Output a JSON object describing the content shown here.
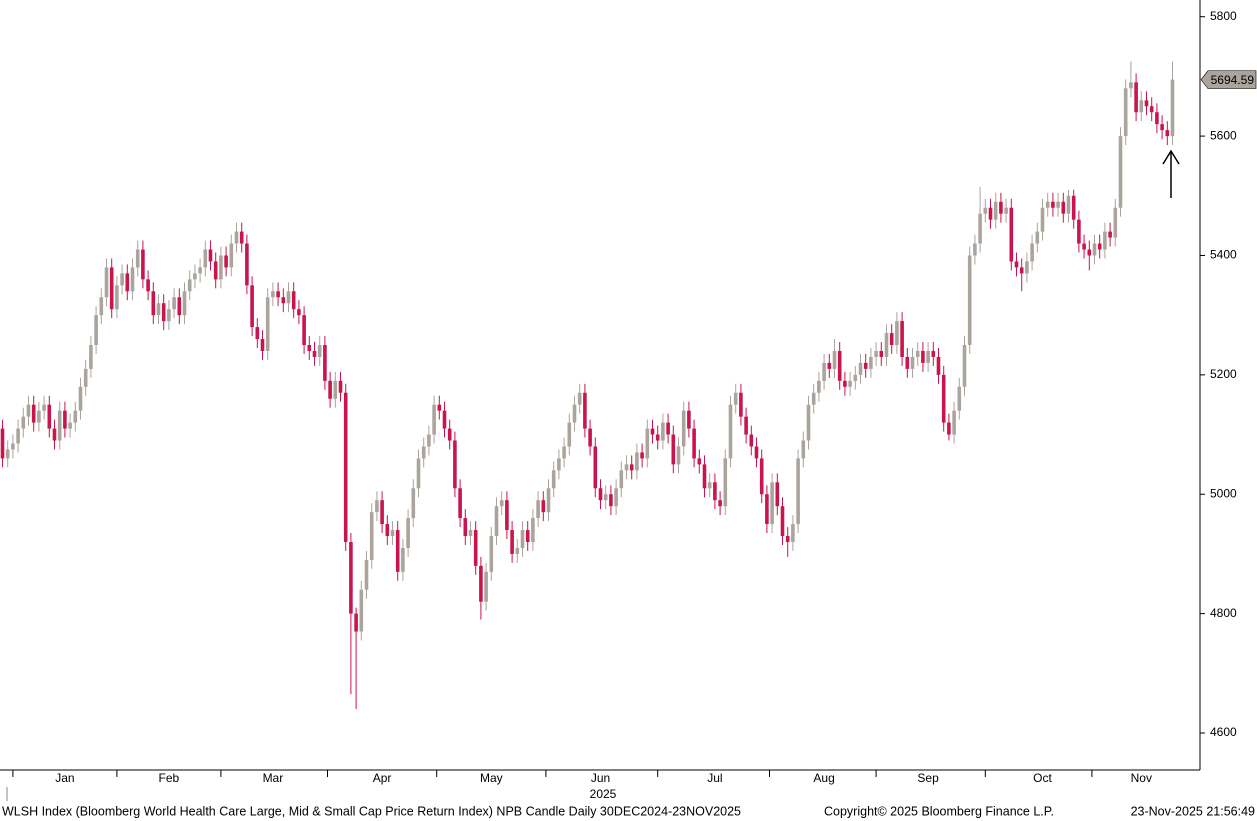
{
  "chart_data": {
    "type": "candlestick",
    "categories": [
      null,
      null,
      null,
      null,
      null,
      null,
      null,
      null,
      null,
      null,
      null,
      null,
      "Jan",
      null,
      null,
      null,
      null,
      null,
      null,
      null,
      null,
      null,
      null,
      null,
      null,
      null,
      null,
      null,
      null,
      null,
      null,
      null,
      "Feb",
      null,
      null,
      null,
      null,
      null,
      null,
      null,
      null,
      null,
      null,
      null,
      null,
      null,
      null,
      null,
      null,
      null,
      null,
      null,
      "Mar",
      null,
      null,
      null,
      null,
      null,
      null,
      null,
      null,
      null,
      null,
      null,
      null,
      null,
      null,
      null,
      null,
      null,
      null,
      null,
      null,
      "Apr",
      null,
      null,
      null,
      null,
      null,
      null,
      null,
      null,
      null,
      null,
      null,
      null,
      null,
      null,
      null,
      null,
      null,
      null,
      null,
      null,
      "May",
      null,
      null,
      null,
      null,
      null,
      null,
      null,
      null,
      null,
      null,
      null,
      null,
      null,
      null,
      null,
      null,
      null,
      null,
      null,
      null,
      "Jun",
      null,
      null,
      null,
      null,
      null,
      null,
      null,
      null,
      null,
      null,
      null,
      null,
      null,
      null,
      null,
      null,
      null,
      null,
      null,
      null,
      null,
      "Jul",
      null,
      null,
      null,
      null,
      null,
      null,
      null,
      null,
      null,
      null,
      null,
      null,
      null,
      null,
      null,
      null,
      null,
      null,
      null,
      null,
      "Aug",
      null,
      null,
      null,
      null,
      null,
      null,
      null,
      null,
      null,
      null,
      null,
      null,
      null,
      null,
      null,
      null,
      null,
      null,
      null,
      "Sep",
      null,
      null,
      null,
      null,
      null,
      null,
      null,
      null,
      null,
      null,
      null,
      null,
      null,
      null,
      null,
      null,
      null,
      null,
      null,
      null,
      null,
      "Oct",
      null,
      null,
      null,
      null,
      null,
      null,
      null,
      null,
      null,
      null,
      null,
      null,
      null,
      null,
      null,
      null,
      null,
      null,
      "Nov",
      null,
      null,
      null,
      null,
      null,
      null
    ],
    "x_year_label": "2025",
    "open": [
      5110,
      5060,
      5075,
      5085,
      5110,
      5130,
      5150,
      5120,
      5140,
      5150,
      5110,
      5090,
      5140,
      5110,
      5120,
      5140,
      5180,
      5210,
      5250,
      5300,
      5330,
      5380,
      5310,
      5350,
      5370,
      5340,
      5380,
      5410,
      5360,
      5340,
      5300,
      5320,
      5290,
      5310,
      5330,
      5300,
      5340,
      5360,
      5370,
      5380,
      5410,
      5390,
      5360,
      5400,
      5380,
      5420,
      5440,
      5420,
      5350,
      5280,
      5260,
      5240,
      5330,
      5340,
      5330,
      5320,
      5340,
      5310,
      5300,
      5250,
      5240,
      5230,
      5250,
      5190,
      5160,
      5190,
      5170,
      4920,
      4800,
      4770,
      4840,
      4890,
      4970,
      4990,
      4950,
      4930,
      4940,
      4870,
      4910,
      4960,
      5010,
      5060,
      5080,
      5100,
      5150,
      5140,
      5110,
      5090,
      5010,
      4960,
      4930,
      4940,
      4880,
      4820,
      4870,
      4930,
      4980,
      4990,
      4940,
      4900,
      4910,
      4940,
      4920,
      4960,
      4990,
      4970,
      5010,
      5040,
      5060,
      5080,
      5120,
      5150,
      5170,
      5110,
      5080,
      5010,
      4990,
      5000,
      4980,
      5010,
      5040,
      5050,
      5040,
      5070,
      5060,
      5110,
      5100,
      5090,
      5120,
      5100,
      5050,
      5080,
      5140,
      5110,
      5060,
      5050,
      5010,
      5020,
      4990,
      4980,
      5060,
      5150,
      5170,
      5130,
      5100,
      5080,
      5060,
      5000,
      4950,
      5020,
      4980,
      4930,
      4920,
      4950,
      5060,
      5090,
      5150,
      5170,
      5190,
      5220,
      5210,
      5240,
      5190,
      5180,
      5190,
      5200,
      5220,
      5210,
      5230,
      5240,
      5230,
      5270,
      5250,
      5290,
      5230,
      5210,
      5230,
      5240,
      5220,
      5240,
      5230,
      5200,
      5120,
      5100,
      5140,
      5180,
      5250,
      5400,
      5420,
      5470,
      5480,
      5460,
      5490,
      5470,
      5480,
      5390,
      5380,
      5370,
      5390,
      5420,
      5440,
      5480,
      5490,
      5480,
      5490,
      5470,
      5500,
      5460,
      5420,
      5410,
      5400,
      5420,
      5410,
      5440,
      5430,
      5480,
      5600,
      5680,
      5690,
      5640,
      5660,
      5650,
      5640,
      5620,
      5610,
      5600
    ],
    "high": [
      5125,
      5090,
      5100,
      5125,
      5145,
      5165,
      5165,
      5155,
      5165,
      5165,
      5125,
      5155,
      5155,
      5135,
      5155,
      5195,
      5225,
      5265,
      5315,
      5345,
      5395,
      5395,
      5365,
      5385,
      5385,
      5395,
      5425,
      5425,
      5375,
      5355,
      5335,
      5335,
      5325,
      5345,
      5345,
      5355,
      5375,
      5385,
      5395,
      5425,
      5425,
      5405,
      5415,
      5415,
      5435,
      5455,
      5455,
      5435,
      5365,
      5295,
      5275,
      5345,
      5355,
      5355,
      5345,
      5355,
      5355,
      5325,
      5315,
      5265,
      5255,
      5265,
      5265,
      5205,
      5205,
      5205,
      5185,
      4935,
      4810,
      4855,
      4905,
      4985,
      5005,
      5005,
      4965,
      4955,
      4955,
      4925,
      4975,
      5025,
      5075,
      5095,
      5115,
      5165,
      5165,
      5155,
      5125,
      5105,
      5025,
      4975,
      4955,
      4955,
      4895,
      4885,
      4945,
      4995,
      5005,
      5005,
      4955,
      4925,
      4955,
      4955,
      4975,
      5005,
      5005,
      5025,
      5055,
      5075,
      5095,
      5135,
      5165,
      5185,
      5185,
      5125,
      5095,
      5025,
      5015,
      5015,
      5025,
      5055,
      5065,
      5065,
      5085,
      5085,
      5125,
      5125,
      5115,
      5135,
      5135,
      5115,
      5095,
      5155,
      5155,
      5125,
      5075,
      5065,
      5035,
      5035,
      5005,
      5075,
      5165,
      5185,
      5185,
      5145,
      5115,
      5095,
      5075,
      5015,
      5035,
      5035,
      4995,
      4945,
      4965,
      5075,
      5105,
      5165,
      5185,
      5205,
      5235,
      5235,
      5260,
      5255,
      5205,
      5205,
      5215,
      5235,
      5235,
      5245,
      5255,
      5255,
      5285,
      5285,
      5305,
      5305,
      5245,
      5245,
      5255,
      5255,
      5255,
      5255,
      5245,
      5215,
      5135,
      5155,
      5195,
      5265,
      5415,
      5435,
      5515,
      5495,
      5495,
      5505,
      5505,
      5495,
      5495,
      5405,
      5395,
      5405,
      5435,
      5455,
      5495,
      5505,
      5505,
      5505,
      5505,
      5510,
      5510,
      5475,
      5435,
      5425,
      5435,
      5435,
      5455,
      5455,
      5495,
      5615,
      5695,
      5725,
      5705,
      5675,
      5675,
      5665,
      5655,
      5635,
      5625,
      5725
    ],
    "low": [
      5045,
      5045,
      5060,
      5070,
      5095,
      5115,
      5105,
      5105,
      5125,
      5095,
      5075,
      5075,
      5095,
      5095,
      5105,
      5125,
      5165,
      5195,
      5235,
      5285,
      5315,
      5295,
      5295,
      5335,
      5325,
      5325,
      5365,
      5345,
      5325,
      5285,
      5285,
      5275,
      5275,
      5295,
      5285,
      5285,
      5325,
      5345,
      5355,
      5365,
      5375,
      5345,
      5345,
      5365,
      5365,
      5405,
      5405,
      5335,
      5265,
      5245,
      5225,
      5225,
      5315,
      5315,
      5305,
      5305,
      5295,
      5285,
      5235,
      5225,
      5215,
      5215,
      5175,
      5145,
      5145,
      5155,
      4905,
      4665,
      4640,
      4755,
      4825,
      4875,
      4955,
      4935,
      4915,
      4915,
      4855,
      4855,
      4895,
      4945,
      4995,
      5045,
      5065,
      5085,
      5125,
      5095,
      5075,
      4995,
      4945,
      4915,
      4915,
      4865,
      4790,
      4805,
      4855,
      4915,
      4965,
      4925,
      4885,
      4885,
      4895,
      4905,
      4905,
      4945,
      4955,
      4955,
      4995,
      5025,
      5045,
      5065,
      5105,
      5135,
      5095,
      5065,
      4995,
      4975,
      4975,
      4965,
      4965,
      4995,
      5025,
      5025,
      5025,
      5045,
      5045,
      5085,
      5075,
      5075,
      5085,
      5035,
      5035,
      5065,
      5095,
      5045,
      5035,
      4995,
      4995,
      4975,
      4965,
      4965,
      5045,
      5135,
      5115,
      5085,
      5065,
      5045,
      4985,
      4935,
      4935,
      4965,
      4915,
      4895,
      4905,
      4935,
      5045,
      5075,
      5135,
      5155,
      5175,
      5195,
      5195,
      5175,
      5165,
      5165,
      5175,
      5185,
      5195,
      5195,
      5215,
      5215,
      5215,
      5235,
      5235,
      5215,
      5195,
      5195,
      5215,
      5205,
      5205,
      5215,
      5185,
      5105,
      5090,
      5085,
      5125,
      5165,
      5235,
      5385,
      5405,
      5455,
      5445,
      5445,
      5455,
      5455,
      5375,
      5365,
      5340,
      5355,
      5375,
      5405,
      5425,
      5465,
      5465,
      5465,
      5455,
      5455,
      5445,
      5405,
      5395,
      5375,
      5385,
      5395,
      5395,
      5415,
      5415,
      5465,
      5585,
      5665,
      5625,
      5625,
      5635,
      5625,
      5605,
      5595,
      5585,
      5585
    ],
    "close": [
      5060,
      5075,
      5085,
      5110,
      5130,
      5150,
      5120,
      5140,
      5150,
      5110,
      5090,
      5140,
      5110,
      5120,
      5140,
      5180,
      5210,
      5250,
      5300,
      5330,
      5380,
      5310,
      5350,
      5370,
      5340,
      5380,
      5410,
      5360,
      5340,
      5300,
      5320,
      5290,
      5310,
      5330,
      5300,
      5340,
      5360,
      5370,
      5380,
      5410,
      5390,
      5360,
      5400,
      5380,
      5420,
      5440,
      5420,
      5350,
      5280,
      5260,
      5240,
      5330,
      5340,
      5330,
      5320,
      5340,
      5310,
      5300,
      5250,
      5240,
      5230,
      5250,
      5190,
      5160,
      5190,
      5170,
      4920,
      4800,
      4770,
      4840,
      4890,
      4970,
      4990,
      4950,
      4930,
      4940,
      4870,
      4910,
      4960,
      5010,
      5060,
      5080,
      5100,
      5150,
      5140,
      5110,
      5090,
      5010,
      4960,
      4930,
      4940,
      4880,
      4820,
      4870,
      4930,
      4980,
      4990,
      4940,
      4900,
      4910,
      4940,
      4920,
      4960,
      4990,
      4970,
      5010,
      5040,
      5060,
      5080,
      5120,
      5150,
      5170,
      5110,
      5080,
      5010,
      4990,
      5000,
      4980,
      5010,
      5040,
      5050,
      5040,
      5070,
      5060,
      5110,
      5100,
      5090,
      5120,
      5100,
      5050,
      5080,
      5140,
      5110,
      5060,
      5050,
      5010,
      5020,
      4990,
      4980,
      5060,
      5150,
      5170,
      5130,
      5100,
      5080,
      5060,
      5000,
      4950,
      5020,
      4980,
      4930,
      4920,
      4950,
      5060,
      5090,
      5150,
      5170,
      5190,
      5220,
      5210,
      5240,
      5190,
      5180,
      5190,
      5200,
      5220,
      5210,
      5230,
      5240,
      5230,
      5270,
      5250,
      5290,
      5230,
      5210,
      5230,
      5240,
      5220,
      5240,
      5230,
      5200,
      5120,
      5100,
      5140,
      5180,
      5250,
      5400,
      5420,
      5470,
      5480,
      5460,
      5490,
      5470,
      5480,
      5390,
      5380,
      5370,
      5390,
      5420,
      5440,
      5480,
      5490,
      5480,
      5490,
      5470,
      5500,
      5460,
      5420,
      5410,
      5400,
      5420,
      5410,
      5440,
      5430,
      5480,
      5600,
      5680,
      5690,
      5640,
      5660,
      5650,
      5640,
      5620,
      5610,
      5600,
      5694.59
    ],
    "up_color": "#aba49c",
    "down_color": "#c8154e",
    "last_price_color": "#aba49c",
    "ylim": [
      4538,
      5828
    ],
    "yticks": [
      4600,
      4800,
      5000,
      5200,
      5400,
      5600,
      5800
    ]
  },
  "footer": {
    "description": "WLSH Index (Bloomberg World Health Care Large, Mid & Small Cap Price Return Index) NPB Candle Daily 30DEC2024-23NOV2025",
    "copyright": "Copyright© 2025 Bloomberg Finance L.P.",
    "timestamp": "23-Nov-2025 21:56:49"
  }
}
